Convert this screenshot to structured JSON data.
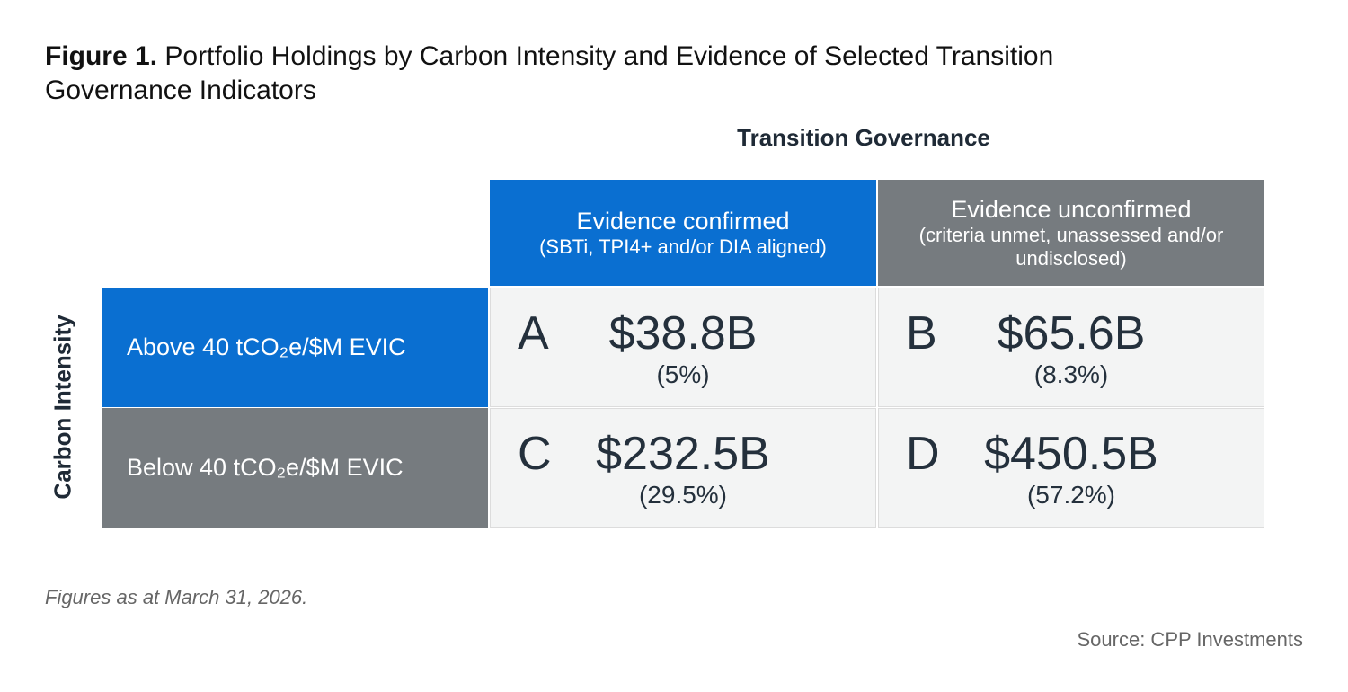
{
  "header": {
    "label": "Figure 1.",
    "title": "Portfolio Holdings by Carbon Intensity and Evidence of Selected Transition Governance Indicators"
  },
  "column_group": "Transition Governance",
  "row_group": "Carbon Intensity",
  "columns": [
    {
      "title": "Evidence confirmed",
      "subtitle": "(SBTi, TPI4+ and/or DIA aligned)"
    },
    {
      "title": "Evidence unconfirmed",
      "subtitle": "(criteria unmet, unassessed and/or undisclosed)"
    }
  ],
  "rows": [
    {
      "label": "Above 40 tCO₂e/$M EVIC",
      "cells": [
        {
          "letter": "A",
          "amount": "$38.8B",
          "share": "(5%)"
        },
        {
          "letter": "B",
          "amount": "$65.6B",
          "share": "(8.3%)"
        }
      ]
    },
    {
      "label": "Below 40 tCO₂e/$M EVIC",
      "cells": [
        {
          "letter": "C",
          "amount": "$232.5B",
          "share": "(29.5%)"
        },
        {
          "letter": "D",
          "amount": "$450.5B",
          "share": "(57.2%)"
        }
      ]
    }
  ],
  "note": "Figures as at March 31, 2026.",
  "source": "Source: CPP Investments"
}
